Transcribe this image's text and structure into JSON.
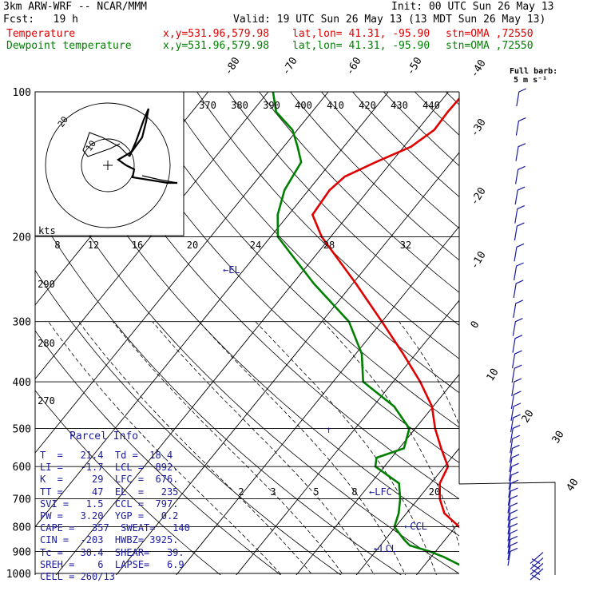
{
  "header": {
    "model": "3km ARW-WRF -- NCAR/MMM",
    "init": "Init: 00 UTC Sun 26 May 13",
    "fcst": "Fcst:   19 h",
    "valid": "Valid: 19 UTC Sun 26 May 13 (13 MDT Sun 26 May 13)",
    "temp_label": "Temperature",
    "dew_label": "Dewpoint temperature",
    "xy": "x,y=531.96,579.98",
    "latlon": "lat,lon= 41.31, -95.90",
    "stn": "stn=OMA ,72550",
    "barb_title": "Full barb:",
    "barb_unit": "5 m s⁻¹"
  },
  "colors": {
    "temperature": "#e00000",
    "dewpoint": "#008000",
    "annotation": "#1a1aa0"
  },
  "hodograph": {
    "kts_label": "kts",
    "ring_labels": [
      "10",
      "20"
    ]
  },
  "chart_data": {
    "type": "line",
    "chart_kind": "skew-T log-P",
    "y_axis": {
      "scale": "log",
      "unit": "hPa",
      "ticks": [
        100,
        200,
        300,
        400,
        500,
        600,
        700,
        800,
        900,
        1000
      ]
    },
    "isotherm_labels": [
      "-80",
      "-70",
      "-60",
      "-50",
      "-40",
      "-30",
      "-20",
      "-10",
      "0",
      "10",
      "20",
      "30",
      "40"
    ],
    "theta_labels": [
      "370",
      "380",
      "390",
      "400",
      "410",
      "420",
      "430",
      "440"
    ],
    "theta_left_labels": [
      "290",
      "280",
      "270"
    ],
    "mixing_ratio_labels_top": [
      "8",
      "12",
      "16",
      "20",
      "24",
      "28",
      "32"
    ],
    "mixing_ratio_labels_low": [
      "2",
      "3",
      "5",
      "8",
      "20"
    ],
    "series": [
      {
        "name": "Temperature",
        "points": [
          [
            1000,
            21.5
          ],
          [
            975,
            19.6
          ],
          [
            950,
            18.5
          ],
          [
            925,
            18.7
          ],
          [
            900,
            17.5
          ],
          [
            875,
            16.1
          ],
          [
            850,
            14.3
          ],
          [
            800,
            10.6
          ],
          [
            750,
            6.3
          ],
          [
            700,
            3.6
          ],
          [
            650,
            1.5
          ],
          [
            600,
            0.6
          ],
          [
            550,
            -3.0
          ],
          [
            500,
            -6.7
          ],
          [
            450,
            -10.2
          ],
          [
            400,
            -15.5
          ],
          [
            350,
            -22.1
          ],
          [
            300,
            -30.0
          ],
          [
            250,
            -39.5
          ],
          [
            200,
            -51.5
          ],
          [
            180,
            -56.0
          ],
          [
            160,
            -56.5
          ],
          [
            150,
            -55.8
          ],
          [
            140,
            -52.6
          ],
          [
            130,
            -48.8
          ],
          [
            120,
            -47.2
          ],
          [
            110,
            -47.4
          ],
          [
            100,
            -47.2
          ]
        ]
      },
      {
        "name": "Dewpoint temperature",
        "points": [
          [
            1000,
            18.2
          ],
          [
            975,
            17.4
          ],
          [
            950,
            14.8
          ],
          [
            925,
            12.2
          ],
          [
            900,
            9.0
          ],
          [
            875,
            4.9
          ],
          [
            850,
            3.1
          ],
          [
            800,
            -0.2
          ],
          [
            750,
            -1.3
          ],
          [
            700,
            -3.0
          ],
          [
            650,
            -5.3
          ],
          [
            600,
            -11.5
          ],
          [
            575,
            -12.5
          ],
          [
            550,
            -9.2
          ],
          [
            500,
            -11.0
          ],
          [
            450,
            -16.5
          ],
          [
            400,
            -25.0
          ],
          [
            350,
            -29.0
          ],
          [
            300,
            -35.5
          ],
          [
            250,
            -46.5
          ],
          [
            200,
            -58.8
          ],
          [
            180,
            -61.8
          ],
          [
            160,
            -64.0
          ],
          [
            140,
            -65.0
          ],
          [
            130,
            -67.7
          ],
          [
            120,
            -70.8
          ],
          [
            110,
            -76.0
          ],
          [
            100,
            -79.2
          ]
        ]
      }
    ],
    "annotations": [
      {
        "text": "←EL",
        "pressure": 235
      },
      {
        "text": "←LFC",
        "pressure": 676
      },
      {
        "text": "←CCL",
        "pressure": 797
      },
      {
        "text": "←LCL",
        "pressure": 892
      }
    ],
    "wind_barbs_levels": [
      1000,
      975,
      950,
      925,
      900,
      875,
      850,
      825,
      800,
      775,
      750,
      725,
      700,
      675,
      650,
      625,
      600,
      575,
      550,
      525,
      500,
      475,
      450,
      425,
      400,
      375,
      350,
      325,
      300,
      275,
      250,
      230,
      210,
      190,
      175,
      160,
      145,
      130,
      115,
      100
    ]
  },
  "parcel_info": {
    "title": "Parcel Info",
    "rows": [
      "T  =   21.4  Td =  18.4",
      "LI =   -1.7  LCL =  892.",
      "K  =     29  LFC =  676.",
      "TT =     47  EL  =   235",
      "SVI =   1.5  CCL =  797.",
      "PW =   3.20  YGP =   0.2",
      "CAPE =   357  SWEAT=   140",
      "CIN =  -203  HWBZ= 3925.",
      "Tc =   30.4  SHEAR=   39.",
      "SREH =    6  LAPSE=   6.9",
      "CELL = 260/13"
    ]
  }
}
